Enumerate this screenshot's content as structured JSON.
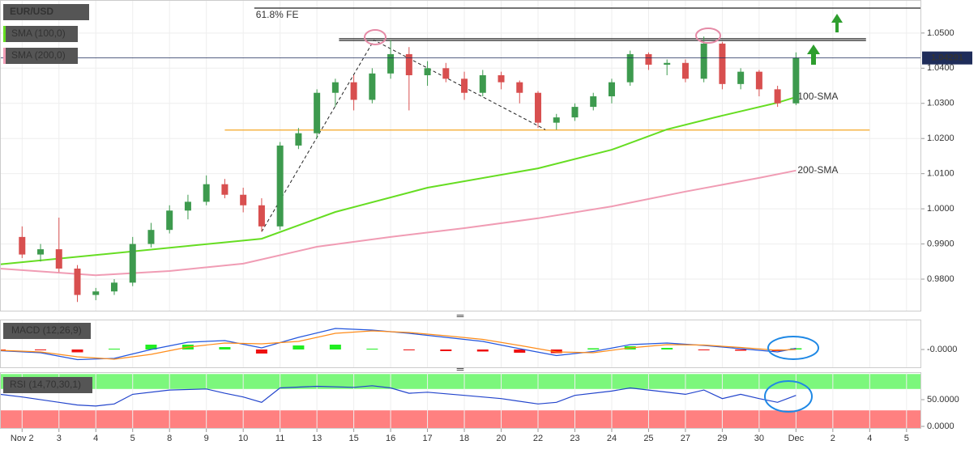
{
  "chart_data": [
    {
      "type": "candlestick",
      "title": "EUR/USD",
      "xlim": [
        -0.6,
        24.4
      ],
      "ylim": [
        0.9708,
        1.0594
      ],
      "yticks": [
        {
          "value": 0.98,
          "label": "0.9800"
        },
        {
          "value": 0.99,
          "label": "0.9900"
        },
        {
          "value": 1.0,
          "label": "1.0000"
        },
        {
          "value": 1.01,
          "label": "1.0100"
        },
        {
          "value": 1.02,
          "label": "1.0200"
        },
        {
          "value": 1.03,
          "label": "1.0300"
        },
        {
          "value": 1.04,
          "label": "1.0400"
        },
        {
          "value": 1.05,
          "label": "1.0500"
        }
      ],
      "grid": true,
      "up_color": "#3d9a4e",
      "down_color": "#d84f4f",
      "ohlc": {
        "x": [
          0,
          0.5,
          1,
          1.5,
          2,
          2.5,
          3,
          3.5,
          4,
          4.5,
          5,
          5.5,
          6,
          6.5,
          7,
          7.5,
          8,
          8.5,
          9,
          9.5,
          10,
          10.5,
          11,
          11.5,
          12,
          12.5,
          13,
          13.5,
          14,
          14.5,
          15,
          15.5,
          16,
          16.5,
          17,
          17.5,
          18,
          18.5,
          19,
          19.5,
          20,
          20.5,
          21
        ],
        "open": [
          0.992,
          0.987,
          0.9885,
          0.983,
          0.9755,
          0.9765,
          0.979,
          0.99,
          0.994,
          0.9995,
          1.002,
          1.007,
          1.004,
          1.001,
          0.995,
          1.018,
          1.0215,
          1.033,
          1.036,
          1.031,
          1.0385,
          1.044,
          1.038,
          1.04,
          1.037,
          1.033,
          1.038,
          1.036,
          1.033,
          1.0245,
          1.026,
          1.029,
          1.032,
          1.036,
          1.044,
          1.041,
          1.0415,
          1.037,
          1.047,
          1.0355,
          1.039,
          1.034,
          1.03
        ],
        "high": [
          0.995,
          0.99,
          0.9975,
          0.984,
          0.9775,
          0.98,
          0.992,
          0.996,
          1.001,
          1.004,
          1.0095,
          1.0085,
          1.006,
          1.003,
          1.019,
          1.023,
          1.034,
          1.037,
          1.038,
          1.04,
          1.048,
          1.046,
          1.042,
          1.0415,
          1.039,
          1.0395,
          1.039,
          1.0365,
          1.0335,
          1.027,
          1.03,
          1.033,
          1.037,
          1.045,
          1.0445,
          1.0425,
          1.0425,
          1.049,
          1.0475,
          1.04,
          1.0395,
          1.035,
          1.0445
        ],
        "low": [
          0.986,
          0.985,
          0.982,
          0.9735,
          0.974,
          0.9755,
          0.978,
          0.989,
          0.993,
          0.997,
          1.001,
          1.003,
          0.999,
          0.9935,
          0.994,
          1.017,
          1.02,
          1.029,
          1.028,
          1.03,
          1.037,
          1.028,
          1.035,
          1.036,
          1.031,
          1.032,
          1.034,
          1.03,
          1.023,
          1.0225,
          1.025,
          1.028,
          1.03,
          1.035,
          1.0395,
          1.038,
          1.036,
          1.036,
          1.034,
          1.034,
          1.032,
          1.029,
          1.0295
        ],
        "close": [
          0.987,
          0.9885,
          0.983,
          0.9755,
          0.9765,
          0.979,
          0.99,
          0.994,
          0.9995,
          1.002,
          1.007,
          1.004,
          1.001,
          0.995,
          1.018,
          1.0215,
          1.033,
          1.036,
          1.031,
          1.0385,
          1.044,
          1.038,
          1.04,
          1.037,
          1.033,
          1.038,
          1.036,
          1.033,
          1.0245,
          1.026,
          1.029,
          1.032,
          1.036,
          1.044,
          1.041,
          1.0415,
          1.037,
          1.047,
          1.0355,
          1.039,
          1.034,
          1.03,
          1.043
        ]
      },
      "lines": [
        {
          "name": "SMA (100,0)",
          "label": "100-SMA",
          "color": "#66dd22",
          "x": [
            -0.6,
            6.5,
            8.5,
            11,
            14,
            16,
            17.5,
            18.8,
            20.5,
            21
          ],
          "values": [
            0.9842,
            0.9915,
            0.9991,
            1.006,
            1.0115,
            1.0168,
            1.0226,
            1.026,
            1.0302,
            1.0318
          ]
        },
        {
          "name": "SMA (200,0)",
          "label": "200-SMA",
          "color": "#f09cb4",
          "x": [
            -0.6,
            2,
            4,
            6,
            8,
            10,
            12,
            14,
            16,
            18,
            20,
            21
          ],
          "values": [
            0.983,
            0.9811,
            0.9823,
            0.9844,
            0.9892,
            0.992,
            0.9945,
            0.9973,
            1.0007,
            1.0049,
            1.0088,
            1.0109
          ]
        }
      ],
      "levels": [
        {
          "value": 1.0571,
          "label": "61.8% FE",
          "color": "#222222",
          "x_range": [
            6.3,
            24.4
          ]
        },
        {
          "value": 1.0484,
          "color": "#222222",
          "x_range": [
            8.6,
            22.9
          ]
        },
        {
          "value": 1.0479,
          "color": "#222222",
          "x_range": [
            8.6,
            22.9
          ]
        },
        {
          "value": 1.0224,
          "color": "#f5a623",
          "x_range": [
            5.5,
            23.0
          ]
        }
      ],
      "pattern": {
        "color": "#222222",
        "x": [
          6.5,
          9.55,
          14.2
        ],
        "values": [
          0.9935,
          1.048,
          1.0225
        ]
      },
      "last_price": 1.04291,
      "last_price_color": "#1f2d5a"
    },
    {
      "type": "macd",
      "title": "MACD (12,26,9)",
      "xlim": [
        -0.6,
        24.4
      ],
      "ylim": [
        -0.0046,
        0.0074
      ],
      "yticks": [
        {
          "value": 0,
          "label": "-0.0000"
        }
      ],
      "x": [
        -0.6,
        0.5,
        1.5,
        2.5,
        3.5,
        4.5,
        5.5,
        6.5,
        7.5,
        8.5,
        9.5,
        10.5,
        11.5,
        12.5,
        13.5,
        14.5,
        15.5,
        16.5,
        17.5,
        18.5,
        19.5,
        20.5,
        21
      ],
      "series": [
        {
          "color": "#2255dd",
          "values": [
            -0.0003,
            -0.0008,
            -0.0025,
            -0.0022,
            0.0,
            0.0018,
            0.0022,
            0.0004,
            0.003,
            0.0052,
            0.0048,
            0.004,
            0.003,
            0.002,
            0.0002,
            -0.0015,
            -0.0005,
            0.0012,
            0.0016,
            0.001,
            0.0002,
            -0.0006,
            0.0003
          ]
        },
        {
          "color": "#ff8c1a",
          "values": [
            -0.0002,
            -0.0006,
            -0.0018,
            -0.0024,
            -0.0012,
            0.0006,
            0.0016,
            0.0014,
            0.002,
            0.004,
            0.0046,
            0.0042,
            0.0034,
            0.0025,
            0.001,
            -0.0006,
            -0.0008,
            0.0004,
            0.0012,
            0.0011,
            0.0005,
            -0.0002,
            0.0
          ]
        }
      ],
      "histogram": {
        "up_color": "#22ee22",
        "down_color": "#ee1111",
        "values": [
          -0.0001,
          -0.0002,
          -0.0007,
          0.0002,
          0.0012,
          0.0012,
          0.0006,
          -0.001,
          0.001,
          0.0012,
          0.0002,
          -0.0002,
          -0.0004,
          -0.0005,
          -0.0008,
          -0.0009,
          0.0003,
          0.0008,
          0.0004,
          -0.0001,
          -0.0003,
          -0.0004,
          0.0003
        ]
      }
    },
    {
      "type": "line",
      "title": "RSI (14,70,30,1)",
      "xlim": [
        -0.6,
        24.4
      ],
      "ylim": [
        -4.5,
        101.5
      ],
      "yticks": [
        {
          "value": 50,
          "label": "50.0000"
        },
        {
          "value": 0,
          "label": "0.0000"
        }
      ],
      "xticks": [
        {
          "value": 0,
          "label": "Nov 2"
        },
        {
          "value": 1,
          "label": "3"
        },
        {
          "value": 2,
          "label": "4"
        },
        {
          "value": 3,
          "label": "5"
        },
        {
          "value": 4,
          "label": "8"
        },
        {
          "value": 5,
          "label": "9"
        },
        {
          "value": 6,
          "label": "10"
        },
        {
          "value": 7,
          "label": "11"
        },
        {
          "value": 8,
          "label": "13"
        },
        {
          "value": 9,
          "label": "15"
        },
        {
          "value": 10,
          "label": "16"
        },
        {
          "value": 11,
          "label": "17"
        },
        {
          "value": 12,
          "label": "18"
        },
        {
          "value": 13,
          "label": "20"
        },
        {
          "value": 14,
          "label": "22"
        },
        {
          "value": 15,
          "label": "23"
        },
        {
          "value": 16,
          "label": "24"
        },
        {
          "value": 17,
          "label": "25"
        },
        {
          "value": 18,
          "label": "27"
        },
        {
          "value": 19,
          "label": "29"
        },
        {
          "value": 20,
          "label": "30"
        },
        {
          "value": 21,
          "label": "Dec"
        },
        {
          "value": 22,
          "label": "2"
        },
        {
          "value": 23,
          "label": "4"
        },
        {
          "value": 24,
          "label": "5"
        }
      ],
      "bands": [
        {
          "range": [
            70,
            98
          ],
          "color": "#7cf77c"
        },
        {
          "range": [
            -4.5,
            30
          ],
          "color": "#ff8080"
        }
      ],
      "x": [
        -0.6,
        0,
        1,
        1.5,
        2,
        2.5,
        3,
        4,
        5,
        5.5,
        6,
        6.5,
        7,
        8,
        9,
        9.5,
        10,
        10.5,
        11,
        12,
        13,
        14,
        14.5,
        15,
        16,
        16.5,
        17,
        18,
        18.5,
        19,
        19.5,
        20,
        20.5,
        21
      ],
      "values": [
        60,
        55,
        45,
        40,
        38,
        42,
        60,
        68,
        70,
        62,
        55,
        45,
        72,
        75,
        73,
        76,
        72,
        62,
        64,
        58,
        52,
        42,
        45,
        58,
        66,
        72,
        68,
        60,
        68,
        52,
        60,
        52,
        45,
        58
      ],
      "color": "#2244cc"
    }
  ]
}
